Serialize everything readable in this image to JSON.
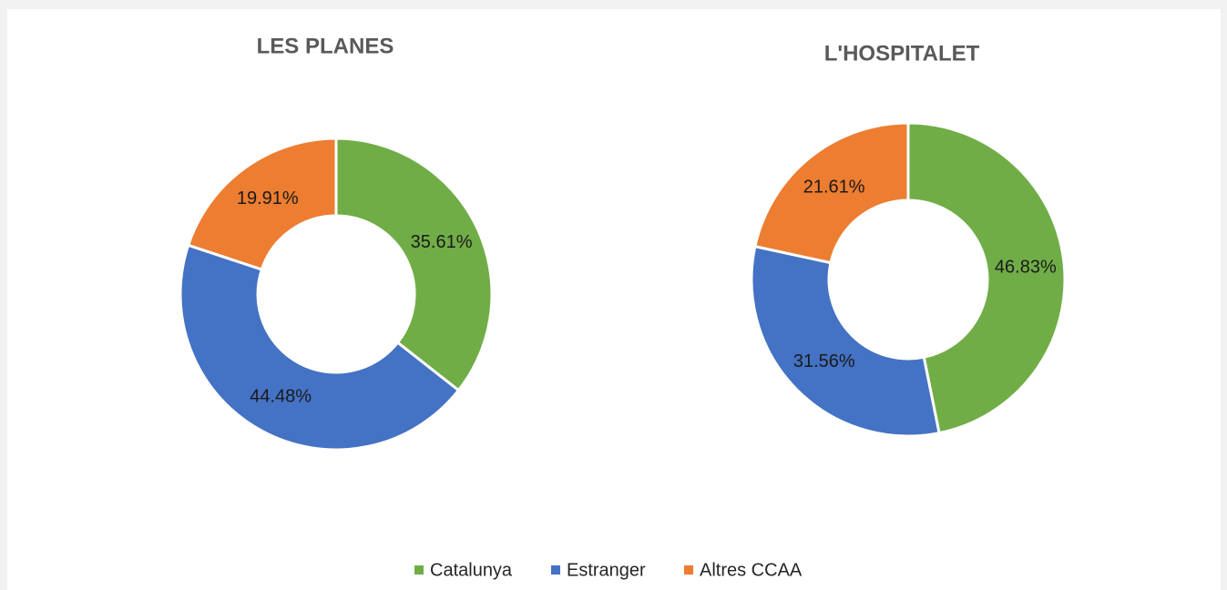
{
  "chart_data": [
    {
      "type": "donut",
      "title": "LES PLANES",
      "categories": [
        "Catalunya",
        "Estranger",
        "Altres CCAA"
      ],
      "values": [
        35.61,
        44.48,
        19.91
      ],
      "value_labels": [
        "35.61%",
        "44.48%",
        "19.91%"
      ],
      "colors": [
        "#70ad47",
        "#4472c4",
        "#ed7d31"
      ],
      "legend": "bottom"
    },
    {
      "type": "donut",
      "title": "L'HOSPITALET",
      "categories": [
        "Catalunya",
        "Estranger",
        "Altres CCAA"
      ],
      "values": [
        46.83,
        31.56,
        21.61
      ],
      "value_labels": [
        "46.83%",
        "31.56%",
        "21.61%"
      ],
      "colors": [
        "#70ad47",
        "#4472c4",
        "#ed7d31"
      ],
      "legend": "bottom"
    }
  ]
}
